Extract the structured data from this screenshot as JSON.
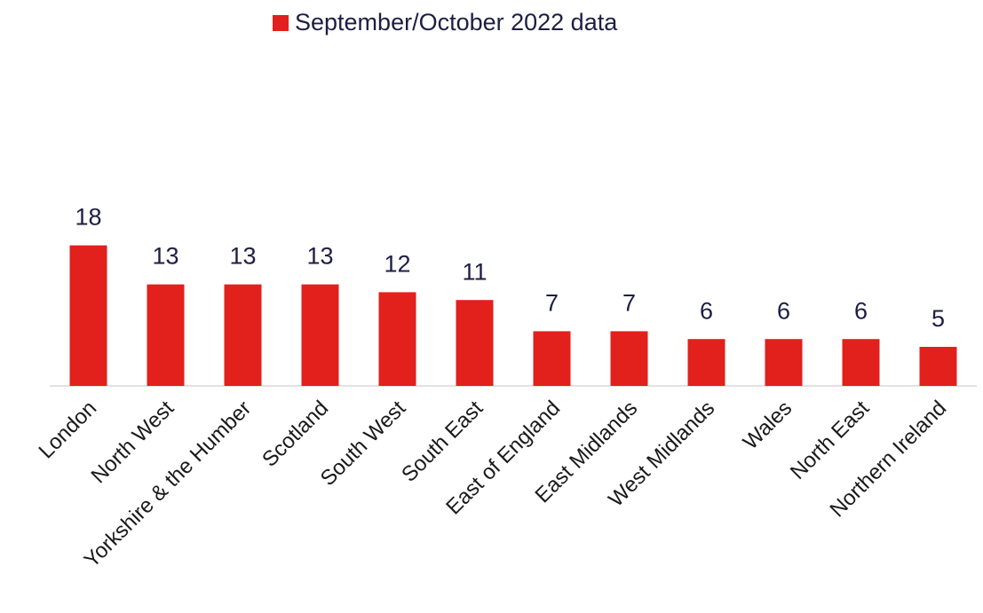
{
  "chart_data": {
    "type": "bar",
    "categories": [
      "London",
      "North West",
      "Yorkshire & the Humber",
      "Scotland",
      "South West",
      "South East",
      "East of England",
      "East Midlands",
      "West Midlands",
      "Wales",
      "North East",
      "Northern Ireland"
    ],
    "series": [
      {
        "name": "September/October 2022 data",
        "color": "#e2201c",
        "values": [
          18,
          13,
          13,
          13,
          12,
          11,
          7,
          7,
          6,
          6,
          6,
          5
        ]
      }
    ],
    "legend": "top"
  }
}
